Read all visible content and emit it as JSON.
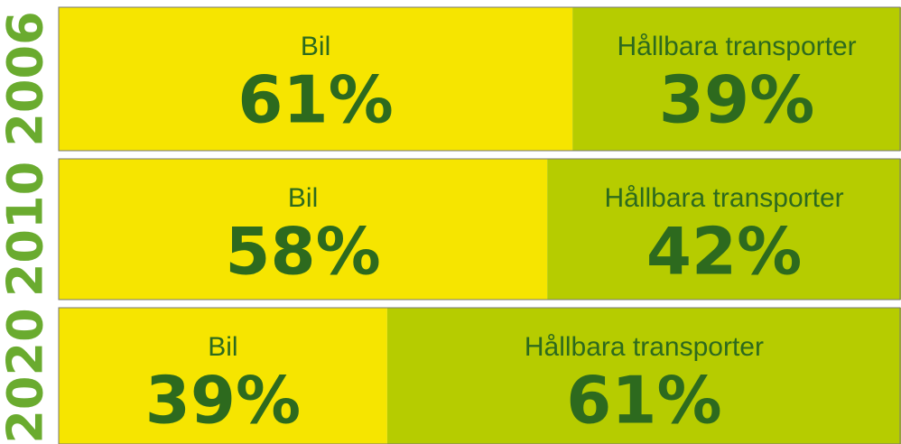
{
  "chart_data": {
    "type": "stacked-bar",
    "categories": [
      "2006",
      "2010",
      "2020"
    ],
    "series": [
      {
        "name": "Bil",
        "color": "#f6e500",
        "values": [
          61,
          58,
          39
        ],
        "value_labels": [
          "61%",
          "58%",
          "39%"
        ]
      },
      {
        "name": "Hållbara transporter",
        "color": "#b6cc00",
        "values": [
          39,
          42,
          61
        ],
        "value_labels": [
          "39%",
          "42%",
          "61%"
        ]
      }
    ]
  }
}
